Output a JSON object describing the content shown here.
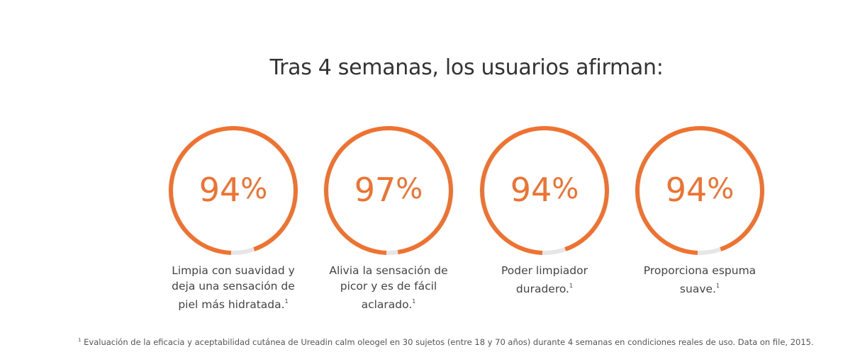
{
  "headline": "Tras 4 semanas, los usuarios afirman:",
  "colors": {
    "accent": "#ef7230",
    "track": "#e6e6e6",
    "text": "#333333"
  },
  "stats": [
    {
      "number": "94",
      "sign": "%",
      "fraction": 0.94,
      "caption_line1": "Limpia con suavidad y",
      "caption_line2": "deja una sensación de",
      "caption_line3": "piel más hidratada.",
      "footnote_ref": "1"
    },
    {
      "number": "97",
      "sign": "%",
      "fraction": 0.97,
      "caption_line1": "Alivia la sensación de",
      "caption_line2": "picor y es de fácil",
      "caption_line3": "aclarado.",
      "footnote_ref": "1"
    },
    {
      "number": "94",
      "sign": "%",
      "fraction": 0.94,
      "caption_line1": "Poder limpiador",
      "caption_line2": "duradero.",
      "footnote_ref": "1"
    },
    {
      "number": "94",
      "sign": "%",
      "fraction": 0.94,
      "caption_line1": "Proporciona espuma",
      "caption_line2": "suave.",
      "footnote_ref": "1"
    }
  ],
  "footnote": {
    "ref": "1",
    "text": "Evaluación de la eficacia y aceptabilidad cutánea de Ureadin calm oleogel en 30 sujetos (entre 18 y 70 años) durante 4 semanas en condiciones reales de uso. Data on file, 2015."
  }
}
